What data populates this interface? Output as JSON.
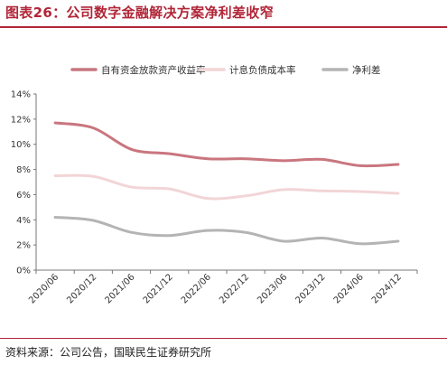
{
  "header": {
    "title": "图表26：公司数字金融解决方案净利差收窄"
  },
  "footer": {
    "source": "资料来源：公司公告，国联民生证券研究所"
  },
  "colors": {
    "accent": "#b12537"
  },
  "chart_data": {
    "type": "line",
    "title": "",
    "xlabel": "",
    "ylabel": "",
    "categories": [
      "2020/06",
      "2020/12",
      "2021/06",
      "2021/12",
      "2022/06",
      "2022/12",
      "2023/06",
      "2023/12",
      "2024/06",
      "2024/12"
    ],
    "ylim": [
      0,
      14
    ],
    "yticks": [
      "0%",
      "2%",
      "4%",
      "6%",
      "8%",
      "10%",
      "12%",
      "14%"
    ],
    "grid": false,
    "legend_position": "top",
    "series": [
      {
        "name": "自有资金放款资产收益率",
        "color": "#c9767f",
        "values": [
          11.7,
          11.3,
          9.6,
          9.25,
          8.85,
          8.85,
          8.7,
          8.8,
          8.3,
          8.4
        ]
      },
      {
        "name": "计息负债成本率",
        "color": "#f2d5d7",
        "values": [
          7.5,
          7.45,
          6.6,
          6.45,
          5.7,
          5.9,
          6.4,
          6.3,
          6.25,
          6.1
        ]
      },
      {
        "name": "净利差",
        "color": "#b4b4b4",
        "values": [
          4.2,
          3.95,
          3.0,
          2.75,
          3.15,
          3.0,
          2.3,
          2.55,
          2.1,
          2.3
        ]
      }
    ]
  }
}
